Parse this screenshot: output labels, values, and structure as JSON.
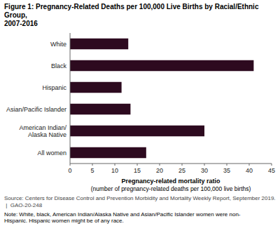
{
  "chart_data": {
    "type": "bar",
    "orientation": "horizontal",
    "title": "Figure 1: Pregnancy-Related Deaths per 100,000 Live Births by Racial/Ethnic Group,\n2007-2016",
    "categories": [
      "White",
      "Black",
      "Hispanic",
      "Asian/Pacific Islander",
      "American Indian/\nAlaska Native",
      "All women"
    ],
    "values": [
      13,
      41,
      11.5,
      13.5,
      30,
      17
    ],
    "color": "#2d0a1f",
    "xlabel": "Pregnancy-related mortality ratio\n(number of pregnancy-related deaths per 100,000 live births)",
    "xlim": [
      0,
      45
    ],
    "xticks": [
      0,
      5,
      10,
      15,
      20,
      25,
      30,
      35,
      40,
      45
    ],
    "annotations": [
      "Source: Centers for Disease Control and Prevention Morbidity and Mortality Weekly Report, September 2019.  |  GAO-20-248",
      "Note: White, black, American Indian/Alaska Native and Asian/Pacific Islander women were non-\nHispanic. Hispanic women might be of any race."
    ]
  }
}
